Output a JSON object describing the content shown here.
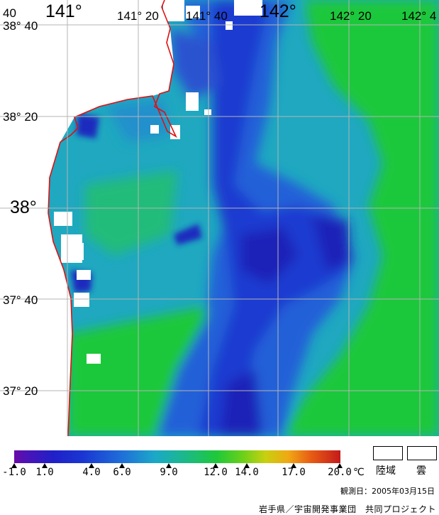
{
  "map": {
    "latitude_labels": [
      "38° 40",
      "38° 20",
      "38°",
      "37° 40",
      "37° 20"
    ],
    "longitude_labels": [
      "141°",
      "141° 20",
      "141° 40",
      "142°",
      "142° 20",
      "142° 4"
    ],
    "corner_fragment": "40"
  },
  "colorbar": {
    "tick_labels": [
      "-1.0",
      "1.0",
      "4.0",
      "6.0",
      "9.0",
      "12.0",
      "14.0",
      "17.0",
      "20.0"
    ],
    "unit": "℃"
  },
  "legend": {
    "land_label": "陸域",
    "cloud_label": "雲"
  },
  "footer": {
    "observation_date": "観測日：2005年03月15日",
    "credit": "岩手県／宇宙開発事業団　共同プロジェクト"
  },
  "colors": {
    "coastline": "#e01010",
    "grid": "#b4b4b4",
    "cold": "#1f3fd4",
    "mid": "#1fa8c0",
    "warm": "#1ec83a"
  }
}
